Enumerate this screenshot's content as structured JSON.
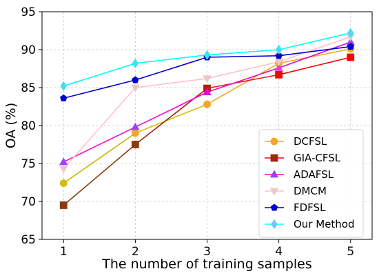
{
  "chart_data": {
    "type": "line",
    "xlabel": "The number of training samples",
    "ylabel": "OA (%)",
    "x": [
      1,
      2,
      3,
      4,
      5
    ],
    "xticks": [
      "1",
      "2",
      "3",
      "4",
      "5"
    ],
    "ylim": [
      65,
      95
    ],
    "yticks": [
      "65",
      "70",
      "75",
      "80",
      "85",
      "90",
      "95"
    ],
    "grid": true,
    "legend_position": "bottom-right",
    "series": [
      {
        "name": "DCFSL",
        "color": "#f5a623",
        "line_colors": [
          "#c9b400",
          "#d8c000",
          "#f5a623",
          "#f5a623"
        ],
        "marker": "circle",
        "values": [
          72.4,
          79.0,
          82.8,
          88.2,
          90.1
        ]
      },
      {
        "name": "GIA-CFSL",
        "color": "#ff0000",
        "line_colors": [
          "#8b3a0f",
          "#a02010",
          "#e8201a",
          "#ff0000"
        ],
        "marker": "square",
        "values": [
          69.5,
          77.5,
          84.9,
          86.7,
          89.0
        ]
      },
      {
        "name": "ADAFSL",
        "color": "#ff00d0",
        "line_colors": [
          "#ff00d0",
          "#ff00d0",
          "#ff00d0",
          "#e000e0"
        ],
        "marker": "triangle-up",
        "values": [
          75.2,
          79.8,
          84.4,
          87.6,
          91.0
        ]
      },
      {
        "name": "DMCM",
        "color": "#ffc0cb",
        "line_colors": [
          "#ffc0cb",
          "#ffc0cb",
          "#ffc0cb",
          "#ffc0cb"
        ],
        "marker": "triangle-down",
        "values": [
          74.3,
          85.0,
          86.2,
          88.4,
          91.7
        ]
      },
      {
        "name": "FDFSL",
        "color": "#0000cc",
        "line_colors": [
          "#0000cc",
          "#0000cc",
          "#0000cc",
          "#0000cc"
        ],
        "marker": "pentagon",
        "values": [
          83.6,
          86.0,
          89.0,
          89.2,
          90.4
        ]
      },
      {
        "name": "Our Method",
        "color": "#00ffff",
        "line_colors": [
          "#00ffff",
          "#00ffff",
          "#00ffff",
          "#00ffff"
        ],
        "marker": "diamond",
        "values": [
          85.2,
          88.2,
          89.3,
          90.0,
          92.2
        ]
      }
    ],
    "marker_colors": {
      "DCFSL": [
        "#d0bc00",
        "#f5a623",
        "#f5a623",
        "#f5a623",
        "#f5a623"
      ],
      "GIA-CFSL": [
        "#8b3a0f",
        "#8b3a0f",
        "#c0180a",
        "#ff0000",
        "#ff0000"
      ],
      "ADAFSL": [
        "#a040ff",
        "#a040ff",
        "#e000e0",
        "#e040e0",
        "#a040ff"
      ],
      "DMCM": [
        "#e8c8c8",
        "#e8c8c8",
        "#e8c8c8",
        "#e8c8c8",
        "#e8c8c8"
      ],
      "FDFSL": [
        "#0000cc",
        "#0000cc",
        "#0000cc",
        "#0000cc",
        "#0000cc"
      ],
      "Our Method": [
        "#40e0f0",
        "#40e0f0",
        "#40e0f0",
        "#40e0f0",
        "#40e0f0"
      ]
    },
    "legend_marker_colors": {
      "DCFSL": "#f5a623",
      "GIA-CFSL": "#9a2a0a",
      "ADAFSL": "#9b40f0",
      "DMCM": "#e8c8c8",
      "FDFSL": "#0000cc",
      "Our Method": "#6ec8f5"
    }
  }
}
